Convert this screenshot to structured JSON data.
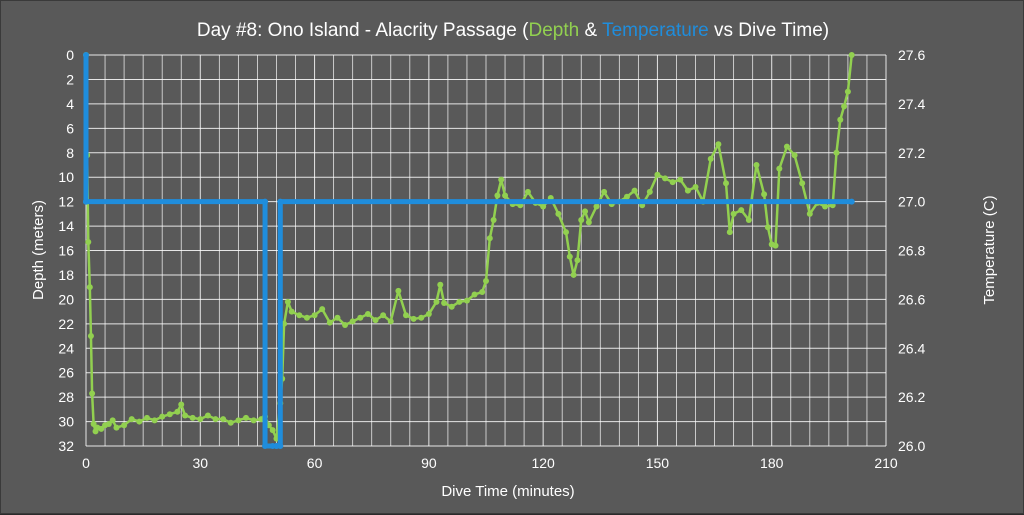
{
  "colors": {
    "background": "#595959",
    "grid": "#ffffff",
    "text": "#ffffff",
    "depth": "#92d050",
    "temperature": "#1f8ddc"
  },
  "chart_data": {
    "type": "line",
    "title": {
      "prefix": "Day #8: Ono Island - Alacrity Passage (",
      "series1": "Depth",
      "amp": " & ",
      "series2": "Temperature",
      "suffix": " vs Dive Time)"
    },
    "xlabel": "Dive Time (minutes)",
    "ylabel": "Depth (meters)",
    "y2label": "Temperature (C)",
    "xlim": [
      0,
      210
    ],
    "ylim": [
      32,
      0
    ],
    "y_reversed": true,
    "y2lim": [
      26.0,
      27.6
    ],
    "x_ticks": [
      "0",
      "30",
      "60",
      "90",
      "120",
      "150",
      "180",
      "210"
    ],
    "y_ticks": [
      "0",
      "2",
      "4",
      "6",
      "8",
      "10",
      "12",
      "14",
      "16",
      "18",
      "20",
      "22",
      "24",
      "26",
      "28",
      "30",
      "32"
    ],
    "y2_ticks": [
      "26.0",
      "26.2",
      "26.4",
      "26.6",
      "26.8",
      "27.0",
      "27.2",
      "27.4",
      "27.6"
    ],
    "grid": true,
    "series": [
      {
        "name": "Depth",
        "axis": "left",
        "x": [
          0,
          0.3,
          0.6,
          1,
          1.3,
          1.6,
          2,
          2.5,
          3,
          4,
          5,
          6,
          7,
          8,
          10,
          12,
          14,
          16,
          18,
          20,
          22,
          24,
          25,
          26,
          28,
          30,
          32,
          34,
          36,
          38,
          40,
          42,
          44,
          46,
          47,
          48,
          49,
          50,
          51,
          51.5,
          52,
          53,
          54,
          56,
          58,
          60,
          62,
          64,
          66,
          68,
          70,
          72,
          74,
          76,
          78,
          80,
          82,
          84,
          86,
          88,
          90,
          92,
          93,
          94,
          96,
          98,
          100,
          102,
          104,
          105,
          106,
          107,
          108,
          109,
          110,
          112,
          114,
          116,
          118,
          120,
          122,
          124,
          126,
          127,
          128,
          129,
          130,
          131,
          132,
          134,
          136,
          138,
          140,
          142,
          144,
          146,
          148,
          150,
          152,
          154,
          156,
          158,
          160,
          162,
          164,
          166,
          168,
          169,
          170,
          172,
          174,
          176,
          178,
          179,
          180,
          181,
          182,
          184,
          186,
          188,
          190,
          192,
          194,
          196,
          197,
          198,
          199,
          200,
          201
        ],
        "values": [
          0,
          8.2,
          15.3,
          19,
          23,
          27.7,
          30.2,
          30.8,
          30.5,
          30.6,
          30.3,
          30.2,
          29.9,
          30.5,
          30.3,
          29.8,
          30,
          29.7,
          29.9,
          29.6,
          29.4,
          29.2,
          28.6,
          29.5,
          29.7,
          29.8,
          29.5,
          29.8,
          29.8,
          30.1,
          29.9,
          29.7,
          29.9,
          29.8,
          29.6,
          30.3,
          30.7,
          31.4,
          28.5,
          26.5,
          22,
          20.2,
          21,
          21.3,
          21.5,
          21.3,
          20.8,
          21.9,
          21.5,
          22.1,
          21.8,
          21.5,
          21.2,
          21.7,
          21.3,
          21.8,
          19.3,
          21.3,
          21.6,
          21.5,
          21.2,
          20.2,
          18.8,
          20.3,
          20.6,
          20.2,
          20.1,
          19.6,
          19.4,
          18.5,
          15,
          13.5,
          11.5,
          10.2,
          11.5,
          12.2,
          12.3,
          11.2,
          12.1,
          12.4,
          11.7,
          13,
          14.5,
          16.5,
          18,
          16.8,
          13.5,
          12.8,
          13.7,
          12.4,
          11.2,
          12.2,
          12,
          11.6,
          11.1,
          12.3,
          11.2,
          9.8,
          10.1,
          10.4,
          10.2,
          11.1,
          10.8,
          12,
          8.5,
          7.3,
          10.5,
          14.5,
          13,
          12.7,
          13.5,
          9,
          11.4,
          14.1,
          15.5,
          15.6,
          9.3,
          7.5,
          8.2,
          10.5,
          13,
          12.1,
          12.4,
          12.3,
          8,
          5.3,
          4.2,
          3,
          0
        ],
        "color": "#92d050"
      },
      {
        "name": "Temperature",
        "axis": "right",
        "x": [
          0,
          0,
          0,
          47,
          47,
          49,
          50,
          50,
          51,
          51,
          201
        ],
        "values": [
          27.6,
          27.0,
          27.0,
          27.0,
          26.0,
          26.0,
          26.0,
          26.0,
          26.0,
          27.0,
          27.0
        ],
        "color": "#1f8ddc"
      }
    ]
  }
}
